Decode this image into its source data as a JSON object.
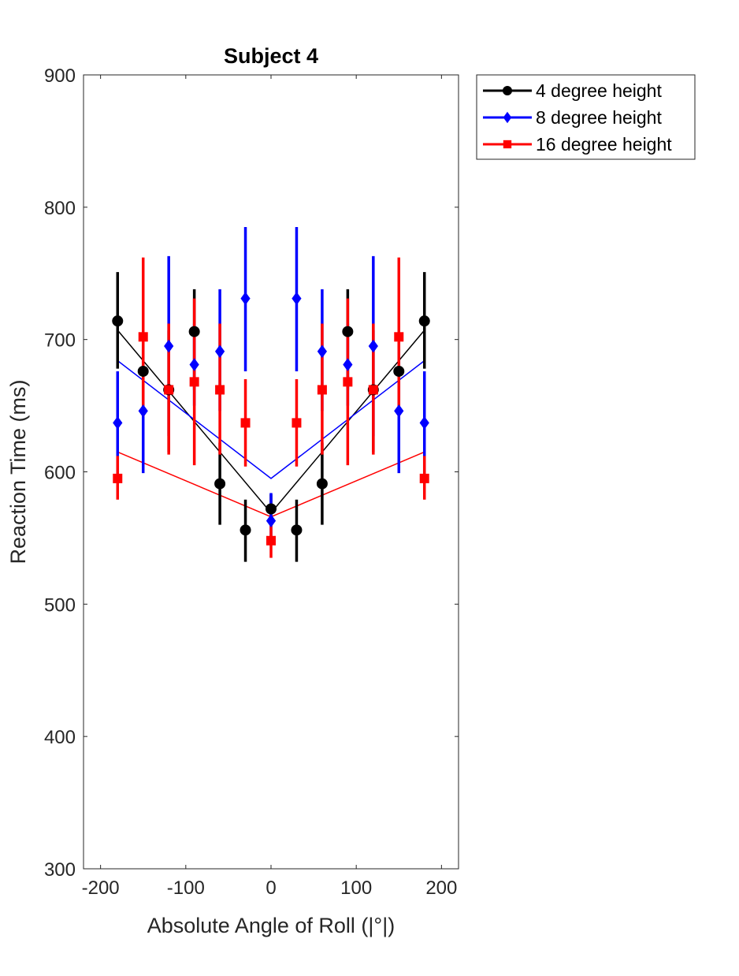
{
  "chart_data": {
    "type": "scatter",
    "title": "Subject 4",
    "xlabel": "Absolute Angle of Roll (|°|)",
    "ylabel": "Reaction Time (ms)",
    "xlim": [
      -220,
      220
    ],
    "ylim": [
      300,
      900
    ],
    "xticks": [
      -200,
      -100,
      0,
      100,
      200
    ],
    "yticks": [
      300,
      400,
      500,
      600,
      700,
      800,
      900
    ],
    "xtick_labels": [
      "-200",
      "-100",
      "0",
      "100",
      "200"
    ],
    "ytick_labels": [
      "300",
      "400",
      "500",
      "600",
      "700",
      "800",
      "900"
    ],
    "grid": false,
    "legend_position": "outside top-right",
    "series": [
      {
        "name": "4 degree height",
        "color": "#000000",
        "marker": "circle",
        "x": [
          -180,
          -150,
          -120,
          -90,
          -60,
          -30,
          0,
          30,
          60,
          90,
          120,
          150,
          180
        ],
        "y": [
          714,
          676,
          662,
          706,
          591,
          556,
          572,
          556,
          591,
          706,
          662,
          676,
          714
        ],
        "err_low": [
          678,
          654,
          615,
          662,
          560,
          532,
          562,
          532,
          560,
          662,
          615,
          654,
          678
        ],
        "err_high": [
          751,
          698,
          707,
          738,
          622,
          579,
          583,
          579,
          622,
          738,
          707,
          698,
          751
        ],
        "fit": {
          "x": [
            -180,
            0,
            180
          ],
          "y": [
            707,
            569,
            707
          ]
        }
      },
      {
        "name": "8 degree height",
        "color": "#0000ff",
        "marker": "diamond",
        "x": [
          -180,
          -150,
          -120,
          -90,
          -60,
          -30,
          0,
          30,
          60,
          90,
          120,
          150,
          180
        ],
        "y": [
          637,
          646,
          695,
          681,
          691,
          731,
          563,
          731,
          691,
          681,
          695,
          646,
          637
        ],
        "err_low": [
          596,
          599,
          627,
          650,
          646,
          676,
          545,
          676,
          646,
          650,
          627,
          599,
          596
        ],
        "err_high": [
          676,
          693,
          763,
          712,
          738,
          785,
          584,
          785,
          738,
          712,
          763,
          693,
          676
        ],
        "fit": {
          "x": [
            -180,
            0,
            180
          ],
          "y": [
            684,
            595,
            684
          ]
        }
      },
      {
        "name": "16 degree height",
        "color": "#ff0000",
        "marker": "square",
        "x": [
          -180,
          -150,
          -120,
          -90,
          -60,
          -30,
          0,
          30,
          60,
          90,
          120,
          150,
          180
        ],
        "y": [
          595,
          702,
          662,
          668,
          662,
          637,
          548,
          637,
          662,
          668,
          662,
          702,
          595
        ],
        "err_low": [
          579,
          642,
          613,
          605,
          613,
          604,
          535,
          604,
          613,
          605,
          613,
          642,
          579
        ],
        "err_high": [
          612,
          762,
          712,
          731,
          712,
          670,
          563,
          670,
          712,
          731,
          712,
          762,
          612
        ],
        "fit": {
          "x": [
            -180,
            0,
            180
          ],
          "y": [
            615,
            566,
            615
          ]
        }
      }
    ]
  }
}
